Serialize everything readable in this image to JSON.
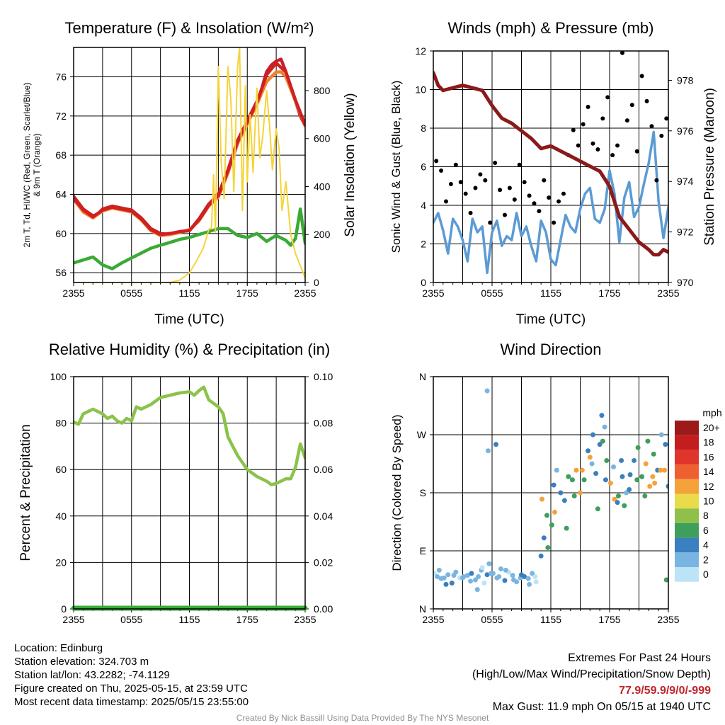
{
  "chart_data": [
    {
      "id": "temp",
      "type": "line",
      "title": "Temperature (F) & Insolation (W/m²)",
      "xlabel": "Time (UTC)",
      "ylabel_lines": [
        "2m T, Td, HI/WC (Red, Green, Scarlet/Blue)",
        "& 9m T (Orange)"
      ],
      "ylabel2": "Solar Insolation (Yellow)",
      "x_ticks": [
        "2355",
        "0555",
        "1155",
        "1755",
        "2355"
      ],
      "ylim": [
        55,
        79
      ],
      "y_ticks": [
        56,
        60,
        64,
        68,
        72,
        76
      ],
      "ylim2": [
        0,
        980
      ],
      "y2_ticks": [
        0,
        200,
        400,
        600,
        800
      ],
      "grid": true,
      "series": [
        {
          "label": "2m T",
          "color": "#c8202a",
          "axis": "left",
          "x": [
            0,
            1,
            2,
            2.5,
            3,
            4,
            5,
            6,
            6.5,
            7,
            8,
            9,
            10,
            11,
            12,
            13,
            14,
            15,
            16,
            16.5,
            17,
            18,
            18.5,
            19,
            19.3,
            19.7,
            20,
            20.5,
            21,
            21.5,
            22,
            22.5,
            23,
            23.5,
            24
          ],
          "y": [
            63.8,
            62.5,
            61.8,
            62,
            62.5,
            62.8,
            62.6,
            62.4,
            62,
            61.6,
            60.5,
            60,
            59.9,
            60.2,
            60.3,
            61.5,
            63,
            64,
            66.5,
            68,
            69.5,
            71.5,
            72.5,
            73.5,
            74,
            75.5,
            76.5,
            77.2,
            77.6,
            77.8,
            76.5,
            75,
            73.5,
            72,
            71
          ]
        },
        {
          "label": "9m T",
          "color": "#f08030",
          "axis": "left",
          "x": [
            0,
            1,
            2,
            3,
            4,
            5,
            6,
            7,
            8,
            9,
            10,
            11,
            12,
            13,
            14,
            15,
            16,
            17,
            18,
            19,
            20,
            20.5,
            21,
            21.5,
            22,
            23,
            24
          ],
          "y": [
            63.5,
            62.2,
            61.6,
            62.3,
            62.6,
            62.4,
            62.2,
            61.4,
            60.3,
            59.8,
            59.9,
            60.1,
            60.4,
            61.3,
            62.8,
            63.7,
            66.2,
            69.2,
            71.2,
            73.2,
            75.5,
            76,
            76.5,
            76.5,
            76,
            73.5,
            71
          ]
        },
        {
          "label": "HI/WC",
          "color": "#d02020",
          "axis": "left",
          "x": [
            0,
            1,
            2,
            3,
            4,
            5,
            6,
            7,
            8,
            9,
            10,
            11,
            12,
            13,
            14,
            15,
            16,
            17,
            18,
            19,
            20,
            21,
            22,
            23,
            24
          ],
          "y": [
            63.6,
            62.4,
            61.7,
            62.4,
            62.7,
            62.5,
            62.3,
            61.5,
            60.4,
            59.9,
            60,
            60.2,
            60.3,
            61.4,
            62.9,
            63.9,
            66.4,
            69.4,
            71.4,
            73.4,
            76.2,
            77.4,
            76.5,
            73.6,
            71.1
          ]
        },
        {
          "label": "Td",
          "color": "#3aaa35",
          "axis": "left",
          "x": [
            0,
            1,
            2,
            3,
            4,
            5,
            6,
            7,
            8,
            9,
            10,
            11,
            12,
            13,
            14,
            15,
            16,
            17,
            18,
            19,
            20,
            21,
            22,
            22.5,
            23,
            23.5,
            24
          ],
          "y": [
            57,
            57.3,
            57.6,
            56.8,
            56.4,
            57,
            57.5,
            58,
            58.5,
            58.8,
            59.1,
            59.4,
            59.6,
            59.9,
            60.2,
            60.5,
            60.5,
            59.8,
            59.6,
            60,
            59.2,
            59.8,
            59.3,
            58.8,
            59.5,
            62.5,
            59
          ]
        },
        {
          "label": "Solar Insolation",
          "color": "#f5d43a",
          "axis": "right",
          "x": [
            0,
            3,
            6,
            8,
            9,
            10,
            11,
            12,
            12.6,
            13,
            13.4,
            13.8,
            14,
            14.3,
            14.5,
            14.7,
            15,
            15.3,
            15.6,
            16,
            16.3,
            16.6,
            17,
            17.2,
            17.5,
            17.8,
            18,
            18.3,
            18.6,
            19,
            19.3,
            19.6,
            20,
            20.3,
            20.6,
            21,
            21.3,
            21.6,
            22,
            22.5,
            23,
            23.5,
            24
          ],
          "y": [
            0,
            0,
            0,
            0,
            0,
            0,
            10,
            40,
            80,
            110,
            140,
            190,
            220,
            230,
            450,
            210,
            900,
            500,
            350,
            900,
            760,
            380,
            900,
            980,
            300,
            820,
            420,
            700,
            460,
            810,
            520,
            610,
            800,
            660,
            470,
            640,
            560,
            300,
            420,
            200,
            120,
            70,
            20
          ]
        }
      ]
    },
    {
      "id": "winds",
      "type": "line",
      "title": "Winds (mph) & Pressure (mb)",
      "xlabel": "Time (UTC)",
      "ylabel": "Sonic Wind & Gust (Blue, Black)",
      "ylabel2": "Station Pressure (Maroon)",
      "x_ticks": [
        "2355",
        "0555",
        "1155",
        "1755",
        "2355"
      ],
      "ylim": [
        0,
        12
      ],
      "y_ticks": [
        0,
        2,
        4,
        6,
        8,
        10,
        12
      ],
      "ylim2": [
        970,
        979.16
      ],
      "y2_ticks": [
        970,
        972,
        974,
        976,
        978
      ],
      "grid": true,
      "series": [
        {
          "label": "Sonic Wind",
          "color": "#5b9bd5",
          "axis": "left",
          "x": [
            0,
            0.5,
            1,
            1.5,
            2,
            2.5,
            3,
            3.5,
            4,
            4.5,
            5,
            5.5,
            6,
            6.5,
            7,
            7.5,
            8,
            8.5,
            9,
            9.5,
            10,
            10.5,
            11,
            11.5,
            12,
            12.5,
            13,
            13.5,
            14,
            14.5,
            15,
            15.5,
            16,
            16.5,
            17,
            17.5,
            18,
            18.5,
            19,
            19.5,
            20,
            20.5,
            21,
            21.5,
            22,
            22.5,
            23,
            23.5,
            24
          ],
          "y": [
            3.1,
            3.6,
            2.7,
            1.5,
            3.3,
            2.9,
            2.2,
            1.1,
            3.3,
            2.6,
            2.9,
            0.5,
            2.6,
            3.2,
            1.9,
            2.4,
            2.2,
            3.6,
            2.4,
            2.9,
            1.9,
            1.1,
            3.2,
            2.6,
            1.2,
            0.9,
            2.2,
            3.5,
            2.9,
            2.6,
            3.8,
            4.6,
            4.9,
            3.3,
            3.1,
            3.8,
            5.8,
            4.6,
            2.1,
            4.4,
            5.2,
            3.4,
            3.9,
            5.1,
            6.2,
            7.8,
            4.2,
            2.3,
            3.9
          ]
        },
        {
          "label": "Gust",
          "color": "#000000",
          "axis": "left",
          "x": [
            0.3,
            0.8,
            1.3,
            1.8,
            2.3,
            2.8,
            3.3,
            3.8,
            4.3,
            4.8,
            5.3,
            5.8,
            6.3,
            6.8,
            7.3,
            7.8,
            8.3,
            8.8,
            9.3,
            9.8,
            10.3,
            10.8,
            11.3,
            11.8,
            12.3,
            12.8,
            13.3,
            13.8,
            14.3,
            14.8,
            15.3,
            15.8,
            16.3,
            16.8,
            17.3,
            17.8,
            18.3,
            18.8,
            19.3,
            19.8,
            20.3,
            20.8,
            21.3,
            21.8,
            22.3,
            22.8,
            23.3,
            23.8
          ],
          "y": [
            6.3,
            5.8,
            4.2,
            5.1,
            6.1,
            5.2,
            4.6,
            3.6,
            4.9,
            5.6,
            5.3,
            3.1,
            6.2,
            4.8,
            3.5,
            4.9,
            4.3,
            6.1,
            5.2,
            4.5,
            4.1,
            3.7,
            5.3,
            4.4,
            3.1,
            4.2,
            4.6,
            6.6,
            7.9,
            7.1,
            8.2,
            9.1,
            7.2,
            6.9,
            8.5,
            9.6,
            6.6,
            7.1,
            11.9,
            8.4,
            9.2,
            6.8,
            10.7,
            9.4,
            8.1,
            5.3,
            7.6,
            8.5
          ]
        },
        {
          "label": "Station Pressure",
          "color": "#8b1a1a",
          "axis": "right",
          "x": [
            0,
            0.5,
            1,
            2,
            3,
            4,
            5,
            6,
            7,
            8,
            9,
            10,
            11,
            12,
            13,
            14,
            15,
            16,
            17,
            18,
            19,
            20,
            21,
            22,
            22.5,
            23,
            23.5,
            24
          ],
          "y": [
            978.3,
            977.8,
            977.6,
            977.7,
            977.8,
            977.7,
            977.6,
            977,
            976.5,
            976.3,
            976,
            975.7,
            975.3,
            975.4,
            975.2,
            975,
            974.8,
            974.6,
            974.4,
            973.8,
            972.6,
            972.1,
            971.6,
            971.3,
            971.1,
            971.1,
            971.3,
            971.2
          ]
        }
      ]
    },
    {
      "id": "rh",
      "type": "line",
      "title": "Relative Humidity (%) & Precipitation (in)",
      "ylabel": "Percent & Precipitation",
      "x_ticks": [
        "2355",
        "0555",
        "1155",
        "1755",
        "2355"
      ],
      "ylim": [
        0,
        100
      ],
      "y_ticks": [
        0,
        20,
        40,
        60,
        80,
        100
      ],
      "ylim2": [
        0,
        0.1
      ],
      "y2_ticks": [
        "0.00",
        "0.02",
        "0.04",
        "0.06",
        "0.08",
        "0.10"
      ],
      "grid": true,
      "series": [
        {
          "label": "Relative Humidity",
          "color": "#8bc34a",
          "axis": "left",
          "x": [
            0,
            0.5,
            1,
            1.5,
            2,
            2.5,
            3,
            3.5,
            4,
            4.5,
            5,
            5.5,
            6,
            6.5,
            7,
            8,
            9,
            10,
            11,
            12,
            12.5,
            13,
            13.5,
            14,
            15,
            15.5,
            16,
            17,
            18,
            19,
            20,
            20.5,
            21,
            21.5,
            22,
            22.5,
            23,
            23.5,
            24
          ],
          "y": [
            80.5,
            79.5,
            84,
            85,
            86,
            85,
            84,
            82,
            83,
            81,
            80,
            82,
            81,
            87,
            86,
            88,
            91,
            92,
            93,
            93.5,
            92,
            94,
            95.5,
            90,
            87,
            84,
            74,
            66,
            60,
            57,
            55,
            53.5,
            54,
            55,
            56,
            56,
            61,
            71,
            65
          ]
        },
        {
          "label": "Precipitation",
          "color": "#3aaa35",
          "axis": "right",
          "x": [
            0,
            24
          ],
          "y": [
            0,
            0
          ]
        }
      ]
    },
    {
      "id": "dir",
      "type": "scatter",
      "title": "Wind Direction",
      "ylabel": "Direction (Colored By Speed)",
      "x_ticks": [
        "2355",
        "0555",
        "1155",
        "1755",
        "2355"
      ],
      "y_ticks": [
        "N",
        "E",
        "S",
        "W",
        "N"
      ],
      "ylim": [
        0,
        360
      ],
      "grid": true,
      "legend": {
        "title": "mph",
        "labels": [
          "20+",
          "18",
          "16",
          "14",
          "12",
          "10",
          "8",
          "6",
          "4",
          "2",
          "0"
        ],
        "colors": [
          "#9c1a1a",
          "#c41d1d",
          "#e0352b",
          "#ef6030",
          "#f5a23a",
          "#e9dc4a",
          "#90c04a",
          "#3e9e5c",
          "#3a7fc0",
          "#78b5e2",
          "#bde4f6"
        ]
      },
      "points": {
        "x": [
          0.1,
          0.4,
          0.8,
          1.1,
          1.5,
          1.9,
          2.3,
          2.7,
          3.1,
          3.5,
          3.9,
          4.3,
          4.6,
          4.9,
          5.2,
          5.5,
          5.7,
          6.1,
          6.5,
          6.9,
          7.3,
          7.7,
          8.1,
          8.5,
          8.9,
          9.3,
          9.7,
          10.1,
          10.5,
          0.6,
          1.3,
          2.1,
          3.0,
          3.8,
          4.5,
          5.0,
          5.9,
          6.7,
          7.4,
          8.2,
          9.0,
          9.8,
          10.4,
          5.5,
          5.6,
          6.4,
          11.0,
          11.3,
          11.7,
          12.1,
          12.4,
          11.1,
          11.6,
          12.3,
          12.6,
          13.0,
          13.4,
          13.8,
          14.2,
          14.6,
          15.0,
          15.4,
          15.8,
          16.2,
          16.6,
          17.0,
          17.3,
          17.7,
          18.1,
          18.5,
          18.9,
          19.3,
          19.7,
          20.1,
          20.5,
          20.9,
          21.3,
          21.7,
          22.1,
          22.5,
          22.9,
          23.3,
          23.7,
          24.0,
          13.6,
          14.4,
          15.2,
          16.0,
          16.8,
          17.6,
          18.4,
          19.2,
          20.0,
          20.8,
          21.6,
          22.4,
          23.2,
          23.8,
          17.2,
          17.5,
          16.3,
          18.8,
          19.5,
          21.9,
          22.6,
          23.6
        ],
        "y": [
          55,
          50,
          47,
          48,
          53,
          40,
          57,
          48,
          50,
          52,
          55,
          45,
          50,
          60,
          40,
          53,
          70,
          55,
          48,
          62,
          44,
          57,
          52,
          42,
          48,
          50,
          47,
          55,
          42,
          60,
          38,
          52,
          48,
          43,
          30,
          64,
          55,
          50,
          60,
          45,
          53,
          38,
          50,
          338,
          245,
          255,
          82,
          110,
          95,
          130,
          150,
          170,
          145,
          192,
          215,
          180,
          168,
          205,
          200,
          215,
          180,
          200,
          245,
          225,
          210,
          255,
          260,
          230,
          195,
          170,
          175,
          205,
          180,
          208,
          230,
          250,
          205,
          225,
          190,
          240,
          215,
          270,
          255,
          190,
          125,
          175,
          215,
          235,
          155,
          200,
          220,
          230,
          185,
          200,
          175,
          205,
          215,
          45,
          300,
          282,
          270,
          165,
          160,
          260,
          195,
          215
        ]
      }
    }
  ],
  "info": {
    "location": "Location: Edinburg",
    "elevation": "Station elevation: 324.703 m",
    "latlon": "Station lat/lon: 43.2282; -74.1129",
    "created": "Figure created on Thu, 2025-05-15, at 23:59 UTC",
    "recent": "Most recent data timestamp: 2025/05/15 23:55:00"
  },
  "extremes": {
    "line1": "Extremes For Past 24 Hours",
    "line2": "(High/Low/Max Wind/Precipitation/Snow Depth)",
    "values": "77.9/59.9/9/0/-999",
    "gust": "Max Gust: 11.9 mph On 05/15 at 1940 UTC"
  },
  "credit": "Created By Nick Bassill Using Data Provided By The NYS Mesonet"
}
